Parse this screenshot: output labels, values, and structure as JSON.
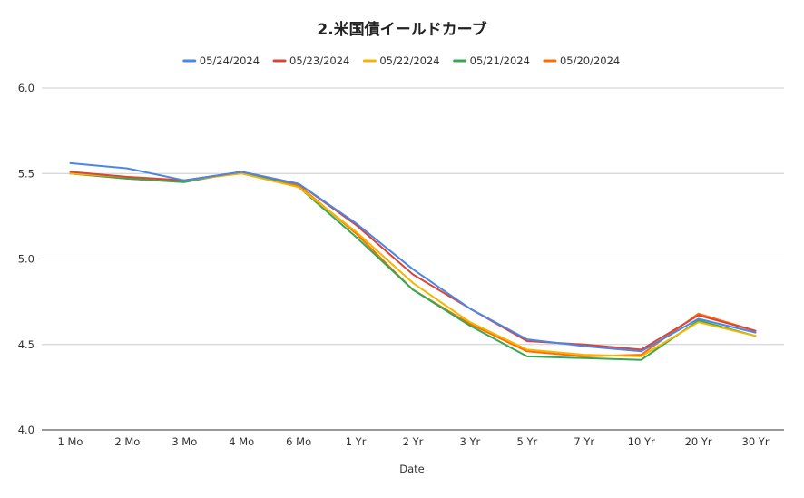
{
  "chart_data": {
    "type": "line",
    "title": "2.米国債イールドカーブ",
    "xlabel": "Date",
    "ylabel": "",
    "categories": [
      "1 Mo",
      "2 Mo",
      "3 Mo",
      "4 Mo",
      "6 Mo",
      "1 Yr",
      "2 Yr",
      "3 Yr",
      "5 Yr",
      "7 Yr",
      "10 Yr",
      "20 Yr",
      "30 Yr"
    ],
    "ylim": [
      4.0,
      6.0
    ],
    "yticks": [
      "4.0",
      "4.5",
      "5.0",
      "5.5",
      "6.0"
    ],
    "ytick_values": [
      4.0,
      4.5,
      5.0,
      5.5,
      6.0
    ],
    "grid": true,
    "legend_position": "top",
    "series": [
      {
        "name": "05/24/2024",
        "color": "#4a86e8",
        "values": [
          5.56,
          5.53,
          5.46,
          5.51,
          5.44,
          5.21,
          4.94,
          4.71,
          4.53,
          4.49,
          4.46,
          4.65,
          4.57
        ]
      },
      {
        "name": "05/23/2024",
        "color": "#db4437",
        "values": [
          5.51,
          5.48,
          5.46,
          5.51,
          5.44,
          5.2,
          4.91,
          4.71,
          4.52,
          4.5,
          4.47,
          4.67,
          4.58
        ]
      },
      {
        "name": "05/22/2024",
        "color": "#f4b400",
        "values": [
          5.5,
          5.48,
          5.46,
          5.5,
          5.42,
          5.16,
          4.86,
          4.63,
          4.47,
          4.44,
          4.43,
          4.63,
          4.55
        ]
      },
      {
        "name": "05/21/2024",
        "color": "#34a853",
        "values": [
          5.5,
          5.47,
          5.45,
          5.51,
          5.42,
          5.13,
          4.82,
          4.61,
          4.43,
          4.42,
          4.41,
          4.64,
          4.55
        ]
      },
      {
        "name": "05/20/2024",
        "color": "#ff6d01",
        "values": [
          5.5,
          5.47,
          5.45,
          5.51,
          5.43,
          5.15,
          4.82,
          4.62,
          4.46,
          4.43,
          4.44,
          4.68,
          4.58
        ]
      }
    ]
  }
}
